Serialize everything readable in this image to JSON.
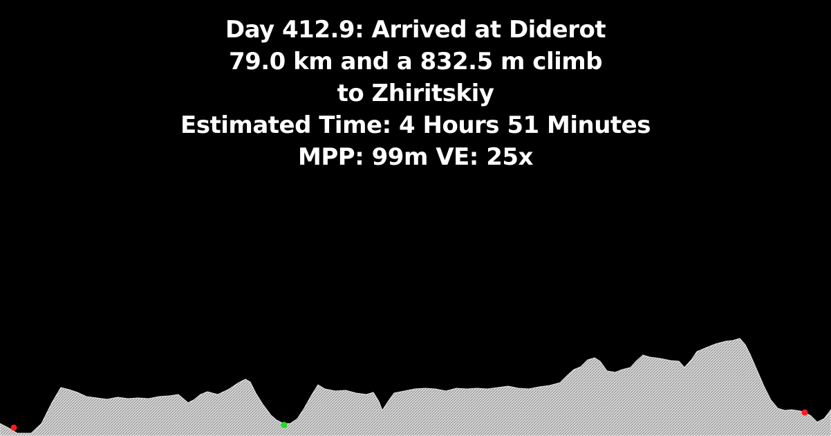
{
  "caption": {
    "line1": "Day 412.9: Arrived at Diderot",
    "line2": "79.0 km and a 832.5 m climb",
    "line3": "to Zhiritskiy",
    "line4": "Estimated Time: 4 Hours 51 Minutes",
    "line5": "MPP: 99m VE: 25x"
  },
  "colors": {
    "background": "#000000",
    "text": "#ffffff",
    "terrain_fill": "#d9d9d9",
    "terrain_hatch": "#8a8a8a",
    "marker_start": "#ff1a1a",
    "marker_current": "#22dd22",
    "marker_end": "#ff1a1a"
  },
  "markers": [
    {
      "name": "start-marker",
      "color_key": "marker_start"
    },
    {
      "name": "current-position-marker",
      "color_key": "marker_current"
    },
    {
      "name": "end-marker",
      "color_key": "marker_end"
    }
  ]
}
